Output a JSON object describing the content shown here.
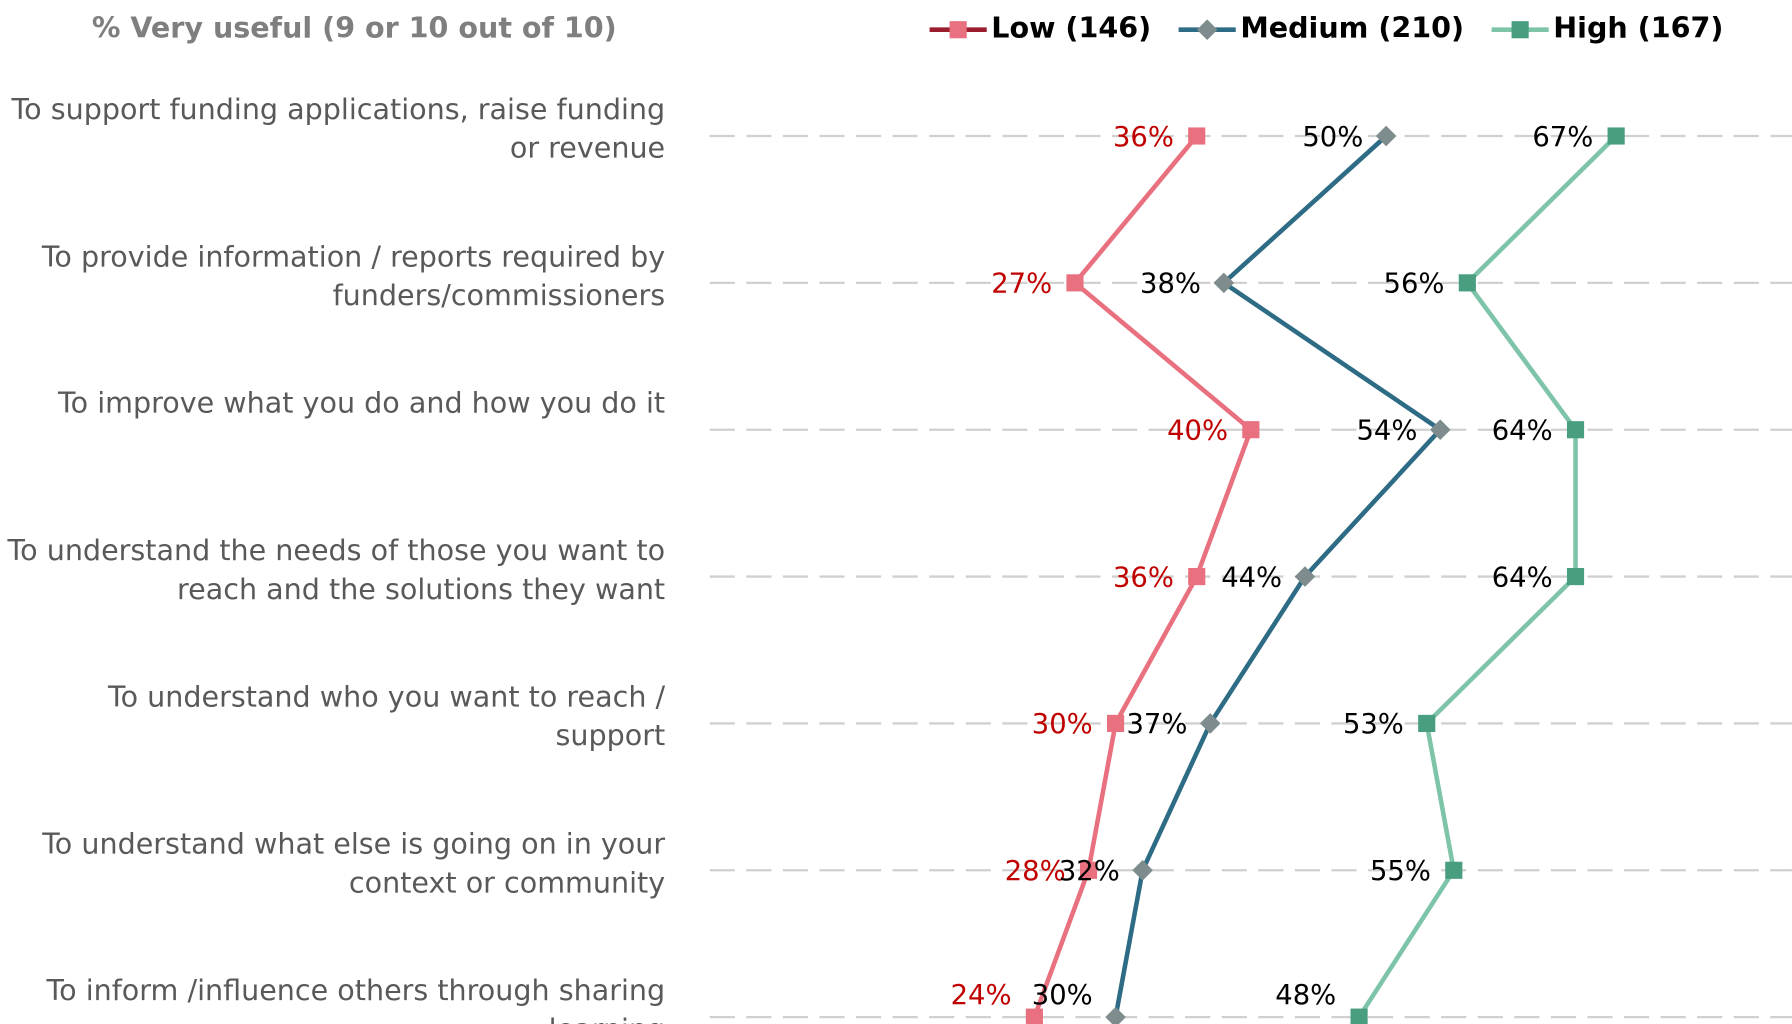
{
  "chart_data": {
    "type": "line",
    "orientation": "horizontal",
    "title": "% Very useful (9 or 10 out of 10)",
    "categories": [
      "To support funding applications, raise funding or revenue",
      "To provide information / reports required by funders/commissioners",
      "To improve what you do and how you do it",
      "To understand the needs of those you want to reach and the solutions they want",
      "To understand who you want to reach / support",
      "To understand what else is going on in your context or community",
      "To inform /influence others through sharing learning"
    ],
    "series": [
      {
        "name": "Low (146)",
        "color": "#e8707f",
        "legend_color": "#9b1c2c",
        "marker_color": "#e8707f",
        "marker": "square",
        "label_color": "#c00000",
        "values": [
          36,
          27,
          40,
          36,
          30,
          28,
          24
        ],
        "value_labels": [
          "36%",
          "27%",
          "40%",
          "36%",
          "30%",
          "28%",
          "24%"
        ]
      },
      {
        "name": "Medium (210)",
        "color": "#2e6b84",
        "legend_color": "#2e6b84",
        "marker_color": "#7f8c8d",
        "marker": "diamond",
        "label_color": "#000000",
        "values": [
          50,
          38,
          54,
          44,
          37,
          32,
          30
        ],
        "value_labels": [
          "50%",
          "38%",
          "54%",
          "44%",
          "37%",
          "32%",
          "30%"
        ]
      },
      {
        "name": "High (167)",
        "color": "#7ec4a8",
        "legend_color": "#7ec4a8",
        "marker_color": "#4a9e80",
        "marker": "square",
        "label_color": "#000000",
        "values": [
          67,
          56,
          64,
          64,
          53,
          55,
          48
        ],
        "value_labels": [
          "67%",
          "56%",
          "64%",
          "64%",
          "53%",
          "55%",
          "48%"
        ]
      }
    ],
    "xlim": [
      0,
      80
    ],
    "grid": true,
    "legend": "top-right"
  }
}
